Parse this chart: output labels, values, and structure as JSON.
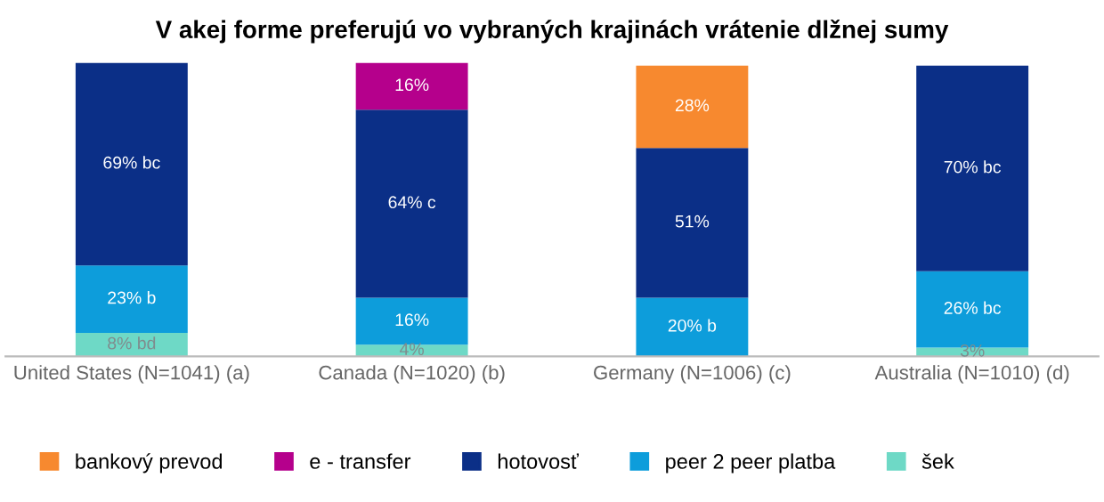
{
  "chart_data": {
    "type": "bar",
    "stacked": true,
    "title": "V akej forme preferujú vo vybraných krajinách vrátenie dlžnej sumy",
    "categories": [
      "United States (N=1041) (a)",
      "Canada (N=1020) (b)",
      "Germany (N=1006) (c)",
      "Australia (N=1010) (d)"
    ],
    "series": [
      {
        "name": "šek",
        "color": "#6ed9c6",
        "values": [
          8,
          4,
          null,
          3
        ],
        "value_labels": [
          "8% bd",
          "4%",
          null,
          "3%"
        ]
      },
      {
        "name": "peer 2 peer platba",
        "color": "#0d9ddb",
        "values": [
          23,
          16,
          20,
          26
        ],
        "value_labels": [
          "23% b",
          "16%",
          "20% b",
          "26% bc"
        ]
      },
      {
        "name": "hotovosť",
        "color": "#0b2f87",
        "values": [
          69,
          64,
          51,
          70
        ],
        "value_labels": [
          "69% bc",
          "64% c",
          "51%",
          "70% bc"
        ]
      },
      {
        "name": "e - transfer",
        "color": "#b5008c",
        "values": [
          null,
          16,
          null,
          null
        ],
        "value_labels": [
          null,
          "16%",
          null,
          null
        ]
      },
      {
        "name": "bankový prevod",
        "color": "#f7892f",
        "values": [
          null,
          null,
          28,
          null
        ],
        "value_labels": [
          null,
          null,
          "28%",
          null
        ]
      }
    ],
    "legend": "bottom",
    "tick_labels": "x"
  }
}
